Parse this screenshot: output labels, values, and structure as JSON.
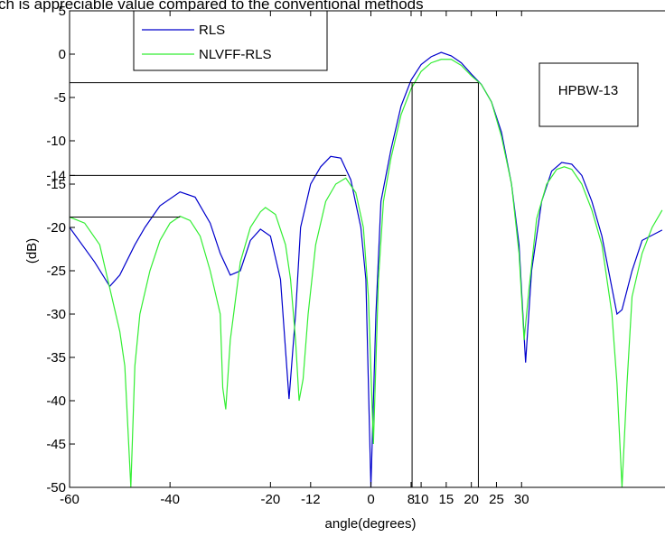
{
  "chart_data": {
    "type": "line",
    "title": "ch is appreciable value compared to the conventional methods",
    "x_label": "angle(degrees)",
    "y_label": "(dB)",
    "xlim": [
      -60,
      60
    ],
    "ylim": [
      -50,
      5
    ],
    "xticks": [
      -60,
      -40,
      -20,
      -12,
      0,
      8,
      10,
      15,
      20,
      25,
      30
    ],
    "yticks": [
      5,
      0,
      -5,
      -10,
      -14,
      -15,
      -20,
      -25,
      -30,
      -35,
      -40,
      -45,
      -50
    ],
    "grid": false,
    "legend": "upper left",
    "annotation": "HPBW-13",
    "reference_lines": [
      {
        "x": [
          -60,
          21.4
        ],
        "y": [
          -3.3,
          -3.3
        ]
      },
      {
        "x": [
          -60,
          -4.9
        ],
        "y": [
          -14,
          -14
        ]
      },
      {
        "x": [
          -60,
          -38
        ],
        "y": [
          -18.8,
          -18.8
        ]
      },
      {
        "x": [
          8.2,
          8.2
        ],
        "y": [
          -3.3,
          -50
        ]
      },
      {
        "x": [
          21.4,
          21.4
        ],
        "y": [
          -3.3,
          -50
        ]
      }
    ],
    "series": [
      {
        "name": "RLS",
        "color": "#0000cc",
        "x": [
          -60,
          -55,
          -52,
          -50,
          -47,
          -45,
          -42,
          -38,
          -35,
          -32,
          -30,
          -28,
          -26,
          -24,
          -22,
          -20,
          -18,
          -16.3,
          -15,
          -14,
          -12,
          -10,
          -8,
          -6,
          -4,
          -2,
          -1,
          0,
          1,
          2,
          4,
          6,
          8,
          10,
          12,
          14,
          16,
          18,
          20,
          22,
          24,
          26,
          28,
          29.5,
          30.8,
          32,
          34,
          36,
          38,
          40,
          42,
          44,
          46,
          48,
          49,
          50,
          52,
          54,
          58
        ],
        "values": [
          -20,
          -24,
          -26.8,
          -25.5,
          -22,
          -20,
          -17.5,
          -15.9,
          -16.5,
          -19.5,
          -23,
          -25.5,
          -25,
          -21.5,
          -20.2,
          -21,
          -26,
          -39.8,
          -30,
          -20,
          -15,
          -13,
          -11.8,
          -12,
          -14.5,
          -20,
          -26,
          -50,
          -30,
          -17,
          -11,
          -6,
          -3,
          -1.2,
          -0.3,
          0.2,
          -0.2,
          -1,
          -2.3,
          -3.5,
          -5.5,
          -9,
          -15,
          -22,
          -35.6,
          -25,
          -17,
          -13.5,
          -12.5,
          -12.7,
          -14,
          -17,
          -21,
          -27,
          -30,
          -29.5,
          -25,
          -21.5,
          -20.3
        ]
      },
      {
        "name": "NLVFF-RLS",
        "color": "#33ee33",
        "x": [
          -60,
          -57,
          -54,
          -52,
          -50,
          -49,
          -47.8,
          -47,
          -46,
          -44,
          -42,
          -40,
          -38,
          -36,
          -34,
          -32,
          -30,
          -29.5,
          -28.9,
          -28,
          -26,
          -24,
          -22,
          -21,
          -19,
          -17,
          -16,
          -15,
          -14.3,
          -13.5,
          -12.5,
          -11,
          -9,
          -7,
          -5,
          -3,
          -1.5,
          -0.5,
          0.5,
          1.5,
          2.5,
          4,
          6,
          8,
          10,
          12,
          14,
          16,
          18,
          20,
          22,
          24,
          26,
          28,
          29.5,
          30.5,
          31.5,
          33,
          35,
          37,
          38.5,
          40,
          42,
          44,
          46,
          48,
          49,
          50,
          51,
          52,
          54,
          56,
          58
        ],
        "values": [
          -18.8,
          -19.5,
          -22,
          -27,
          -32,
          -36,
          -50,
          -36,
          -30,
          -25,
          -21.5,
          -19.5,
          -18.7,
          -19.2,
          -21,
          -25,
          -30,
          -38.5,
          -41,
          -33,
          -24,
          -20,
          -18.2,
          -17.7,
          -18.5,
          -22,
          -26,
          -33,
          -40,
          -37.5,
          -30,
          -22,
          -17,
          -15,
          -14.3,
          -16,
          -20,
          -28,
          -45,
          -26,
          -17,
          -12,
          -7,
          -4,
          -2,
          -1,
          -0.6,
          -0.6,
          -1.3,
          -2.5,
          -3.5,
          -5.5,
          -9.5,
          -15,
          -23,
          -33,
          -27,
          -19,
          -15,
          -13.3,
          -13,
          -13.3,
          -15,
          -18,
          -22,
          -30,
          -38,
          -50,
          -38,
          -28,
          -23,
          -20,
          -18
        ]
      }
    ]
  }
}
